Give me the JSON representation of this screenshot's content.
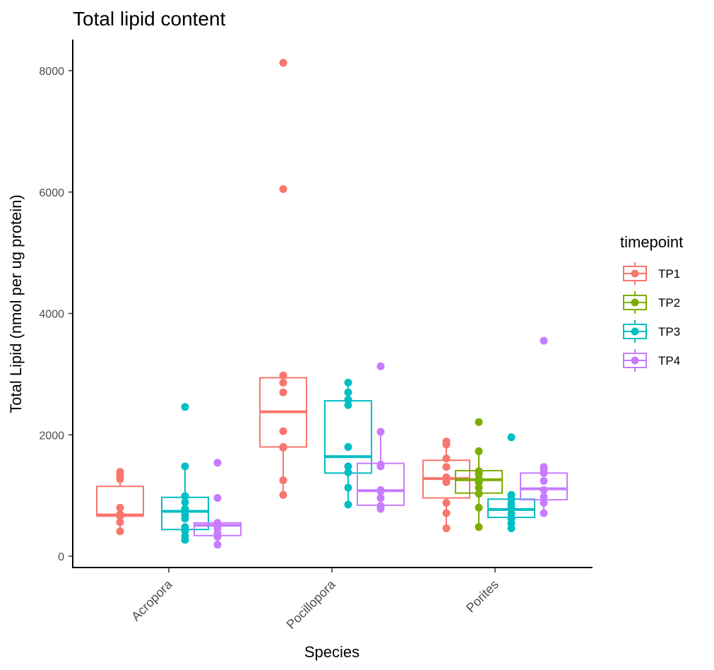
{
  "chart_data": {
    "type": "box",
    "title": "Total lipid content",
    "xlabel": "Species",
    "ylabel": "Total Lipid (nmol per ug protein)",
    "ylim": [
      0,
      8500
    ],
    "yticks": [
      0,
      2000,
      4000,
      6000,
      8000
    ],
    "categories": [
      "Acropora",
      "Pocillopora",
      "Porites"
    ],
    "legend": {
      "title": "timepoint",
      "position": "right",
      "entries": [
        {
          "name": "TP1",
          "color": "#F8766D"
        },
        {
          "name": "TP2",
          "color": "#7CAE00"
        },
        {
          "name": "TP3",
          "color": "#00BFC4"
        },
        {
          "name": "TP4",
          "color": "#C77CFF"
        }
      ]
    },
    "grid": false,
    "groups": [
      {
        "category": "Acropora",
        "timepoint": "TP1",
        "q1": 660,
        "median": 680,
        "q3": 1150,
        "whisker_low": 410,
        "whisker_high": 1390,
        "points": [
          1390,
          1330,
          1270,
          800,
          690,
          670,
          660,
          560,
          410
        ]
      },
      {
        "category": "Acropora",
        "timepoint": "TP3",
        "q1": 440,
        "median": 740,
        "q3": 970,
        "whisker_low": 270,
        "whisker_high": 1480,
        "points": [
          2460,
          1480,
          990,
          890,
          780,
          680,
          620,
          480,
          420,
          330,
          270
        ]
      },
      {
        "category": "Acropora",
        "timepoint": "TP4",
        "q1": 340,
        "median": 510,
        "q3": 550,
        "whisker_low": 190,
        "whisker_high": 560,
        "points": [
          1540,
          960,
          550,
          510,
          460,
          380,
          320,
          190
        ]
      },
      {
        "category": "Pocillopora",
        "timepoint": "TP1",
        "q1": 1800,
        "median": 2380,
        "q3": 2940,
        "whisker_low": 1010,
        "whisker_high": 2980,
        "points": [
          8130,
          6050,
          2980,
          2860,
          2700,
          2060,
          1800,
          1790,
          1250,
          1010
        ]
      },
      {
        "category": "Pocillopora",
        "timepoint": "TP3",
        "q1": 1370,
        "median": 1640,
        "q3": 2560,
        "whisker_low": 850,
        "whisker_high": 2860,
        "points": [
          2860,
          2700,
          2580,
          2490,
          1800,
          1480,
          1380,
          1130,
          850
        ]
      },
      {
        "category": "Pocillopora",
        "timepoint": "TP4",
        "q1": 840,
        "median": 1080,
        "q3": 1530,
        "whisker_low": 780,
        "whisker_high": 2050,
        "points": [
          3130,
          2050,
          1510,
          1480,
          1090,
          1070,
          960,
          830,
          780
        ]
      },
      {
        "category": "Porites",
        "timepoint": "TP1",
        "q1": 960,
        "median": 1280,
        "q3": 1580,
        "whisker_low": 460,
        "whisker_high": 1890,
        "points": [
          1890,
          1840,
          1610,
          1470,
          1300,
          1260,
          1220,
          880,
          710,
          460
        ]
      },
      {
        "category": "Porites",
        "timepoint": "TP2",
        "q1": 1040,
        "median": 1260,
        "q3": 1410,
        "whisker_low": 480,
        "whisker_high": 1730,
        "points": [
          2210,
          1730,
          1400,
          1350,
          1270,
          1220,
          1130,
          1030,
          800,
          480
        ]
      },
      {
        "category": "Porites",
        "timepoint": "TP3",
        "q1": 640,
        "median": 770,
        "q3": 940,
        "whisker_low": 460,
        "whisker_high": 1010,
        "points": [
          1960,
          1010,
          940,
          860,
          790,
          700,
          620,
          540,
          460
        ]
      },
      {
        "category": "Porites",
        "timepoint": "TP4",
        "q1": 930,
        "median": 1110,
        "q3": 1370,
        "whisker_low": 710,
        "whisker_high": 1470,
        "points": [
          3550,
          1470,
          1420,
          1370,
          1240,
          1090,
          980,
          880,
          710
        ]
      }
    ]
  }
}
